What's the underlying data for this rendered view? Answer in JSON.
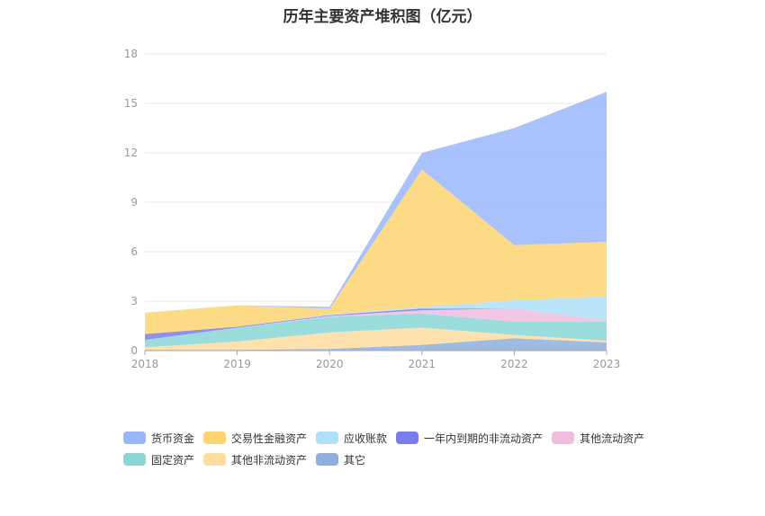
{
  "chart_data": {
    "type": "area",
    "stacked": true,
    "title": "历年主要资产堆积图（亿元）",
    "x": [
      "2018",
      "2019",
      "2020",
      "2021",
      "2022",
      "2023"
    ],
    "ylim": [
      0,
      18
    ],
    "yticks": [
      "0",
      "3",
      "6",
      "9",
      "12",
      "15",
      "18"
    ],
    "grid": true,
    "legend_position": "bottom",
    "series": [
      {
        "name": "其它",
        "color": "#8eaede",
        "values": [
          0.05,
          0.05,
          0.1,
          0.35,
          0.75,
          0.5
        ]
      },
      {
        "name": "其他非流动资产",
        "color": "#ffdca0",
        "values": [
          0.15,
          0.5,
          1.0,
          1.05,
          0.2,
          0.1
        ]
      },
      {
        "name": "固定资产",
        "color": "#8ad6d6",
        "values": [
          0.45,
          0.85,
          0.95,
          0.85,
          0.8,
          1.15
        ]
      },
      {
        "name": "其他流动资产",
        "color": "#f0bde0",
        "values": [
          0.0,
          0.0,
          0.05,
          0.2,
          0.8,
          0.1
        ]
      },
      {
        "name": "一年内到期的非流动资产",
        "color": "#7b7bf0",
        "values": [
          0.35,
          0.05,
          0.05,
          0.1,
          0.0,
          0.0
        ]
      },
      {
        "name": "应收账款",
        "color": "#aee0f8",
        "values": [
          0.0,
          0.0,
          0.05,
          0.1,
          0.5,
          1.45
        ]
      },
      {
        "name": "交易性金融资产",
        "color": "#fdd470",
        "values": [
          1.3,
          1.3,
          0.35,
          8.35,
          3.35,
          3.3
        ]
      },
      {
        "name": "货币资金",
        "color": "#9ab6fb",
        "values": [
          0.0,
          0.0,
          0.1,
          1.0,
          7.1,
          9.1
        ]
      }
    ],
    "legend_order": [
      "货币资金",
      "交易性金融资产",
      "应收账款",
      "一年内到期的非流动资产",
      "其他流动资产",
      "固定资产",
      "其他非流动资产",
      "其它"
    ]
  }
}
